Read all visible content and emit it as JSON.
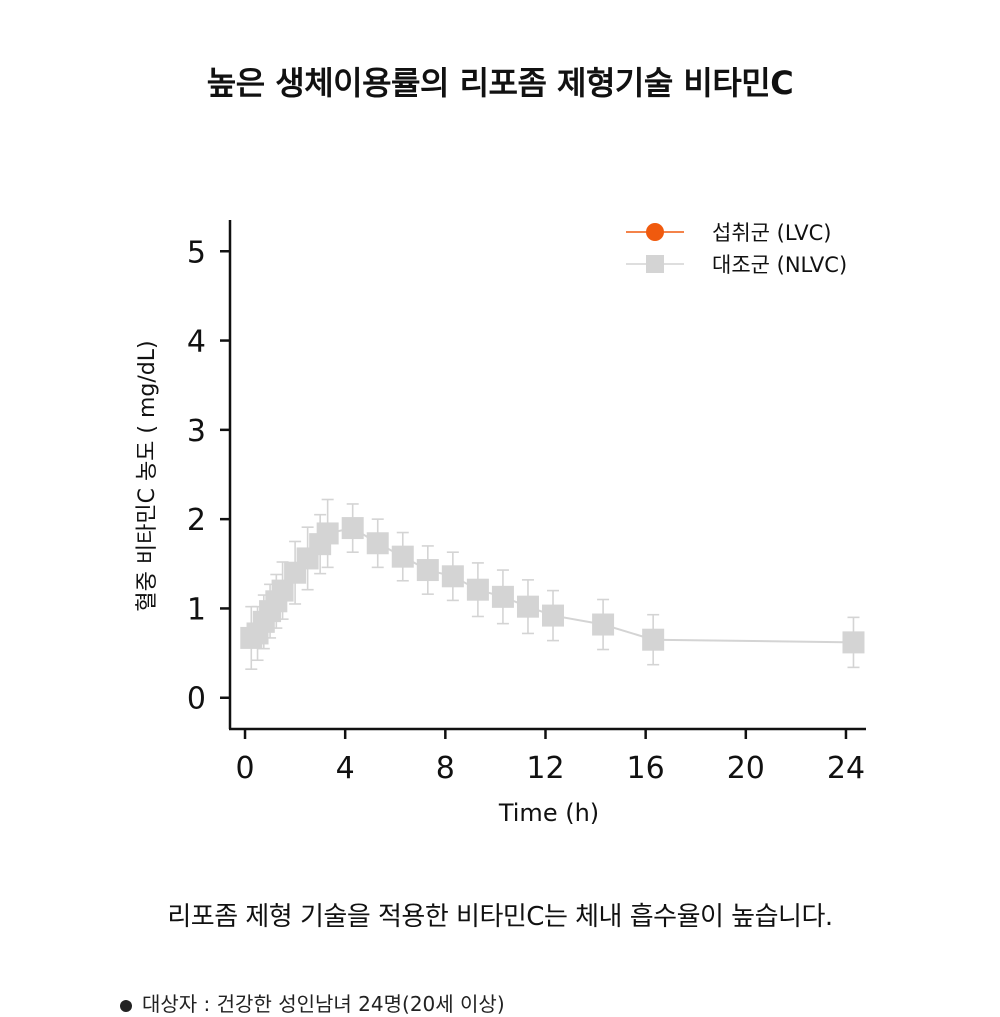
{
  "page": {
    "title": "높은 생체이용률의 리포좀 제형기술 비타민C",
    "caption": "리포좀 제형 기술을 적용한 비타민C는 체내 흡수율이 높습니다.",
    "footnote": "대상자 : 건강한 성인남녀 24명(20세 이상)"
  },
  "chart_data": {
    "type": "line",
    "title": "",
    "xlabel": "Time (h)",
    "ylabel": "혈중 비타민C 농도 ( mg/dL)",
    "xlim": [
      -0.6,
      24.8
    ],
    "ylim": [
      -0.35,
      5.35
    ],
    "xticks": [
      0,
      4,
      8,
      12,
      16,
      20,
      24
    ],
    "yticks": [
      0,
      1,
      2,
      3,
      4,
      5
    ],
    "grid": false,
    "legend_position": "top-right",
    "series": [
      {
        "name": "섭취군 (LVC)",
        "color": "#f05a0e",
        "marker": "circle",
        "x": [],
        "y": [],
        "err": []
      },
      {
        "name": "대조군 (NLVC)",
        "color": "#d4d4d4",
        "marker": "square",
        "x": [
          0.25,
          0.5,
          0.75,
          1,
          1.25,
          1.5,
          2,
          2.5,
          3,
          3.3,
          4.3,
          5.3,
          6.3,
          7.3,
          8.3,
          9.3,
          10.3,
          11.3,
          12.3,
          14.3,
          16.3,
          24.3
        ],
        "y": [
          0.67,
          0.72,
          0.85,
          0.97,
          1.08,
          1.2,
          1.4,
          1.56,
          1.72,
          1.84,
          1.9,
          1.73,
          1.58,
          1.43,
          1.36,
          1.21,
          1.13,
          1.02,
          0.92,
          0.82,
          0.65,
          0.62
        ],
        "err": [
          0.35,
          0.3,
          0.3,
          0.3,
          0.3,
          0.32,
          0.35,
          0.35,
          0.33,
          0.38,
          0.27,
          0.27,
          0.27,
          0.27,
          0.27,
          0.3,
          0.3,
          0.3,
          0.28,
          0.28,
          0.28,
          0.28
        ]
      }
    ]
  }
}
